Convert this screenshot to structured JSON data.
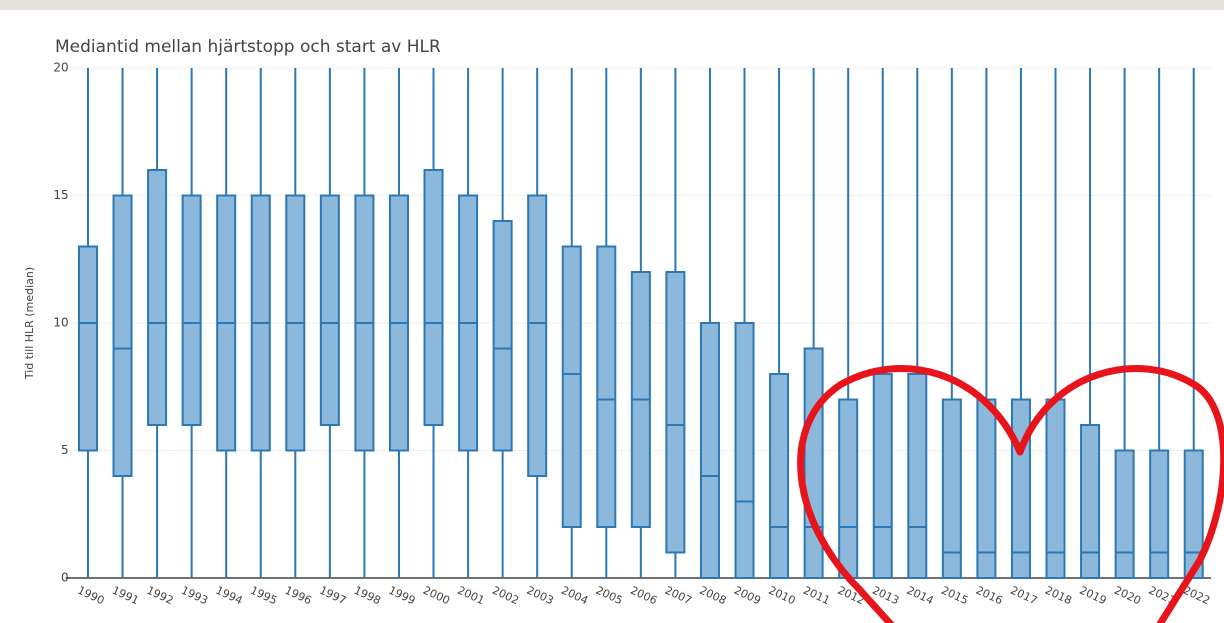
{
  "chart_data": {
    "type": "box",
    "title": "Mediantid mellan hjärtstopp och start av HLR",
    "y_label": "Tid till HLR (median)",
    "categories": [
      "1990",
      "1991",
      "1992",
      "1993",
      "1994",
      "1995",
      "1996",
      "1997",
      "1998",
      "1999",
      "2000",
      "2001",
      "2002",
      "2003",
      "2004",
      "2005",
      "2006",
      "2007",
      "2008",
      "2009",
      "2010",
      "2011",
      "2012",
      "2013",
      "2014",
      "2015",
      "2016",
      "2017",
      "2018",
      "2019",
      "2020",
      "2021",
      "2022"
    ],
    "q1": [
      5,
      4,
      6,
      6,
      5,
      5,
      5,
      6,
      5,
      5,
      6,
      5,
      5,
      4,
      2,
      2,
      2,
      1,
      0,
      0,
      0,
      0,
      0,
      0,
      0,
      0,
      0,
      0,
      0,
      0,
      0,
      0,
      0
    ],
    "median": [
      10,
      9,
      10,
      10,
      10,
      10,
      10,
      10,
      10,
      10,
      10,
      10,
      9,
      10,
      8,
      7,
      7,
      6,
      4,
      3,
      2,
      2,
      2,
      2,
      2,
      1,
      1,
      1,
      1,
      1,
      1,
      1,
      1
    ],
    "q3": [
      13,
      15,
      16,
      15,
      15,
      15,
      15,
      15,
      15,
      15,
      16,
      15,
      14,
      15,
      13,
      13,
      12,
      12,
      10,
      10,
      8,
      9,
      7,
      8,
      8,
      7,
      7,
      7,
      7,
      6,
      5,
      5,
      5
    ],
    "whisker_low": [
      0,
      0,
      0,
      0,
      0,
      0,
      0,
      0,
      0,
      0,
      0,
      0,
      0,
      0,
      0,
      0,
      0,
      0,
      0,
      0,
      0,
      0,
      0,
      0,
      0,
      0,
      0,
      0,
      0,
      0,
      0,
      0,
      0
    ],
    "whisker_high": [
      20,
      20,
      20,
      20,
      20,
      20,
      20,
      20,
      20,
      20,
      20,
      20,
      20,
      20,
      20,
      20,
      20,
      20,
      20,
      20,
      20,
      20,
      20,
      20,
      20,
      20,
      20,
      20,
      20,
      20,
      20,
      20,
      20
    ],
    "color": "#2b78b4",
    "fill": "#8cb8db",
    "ylim": [
      0,
      20
    ],
    "yticks": [
      0,
      5,
      10,
      15,
      20
    ],
    "grid": true
  }
}
